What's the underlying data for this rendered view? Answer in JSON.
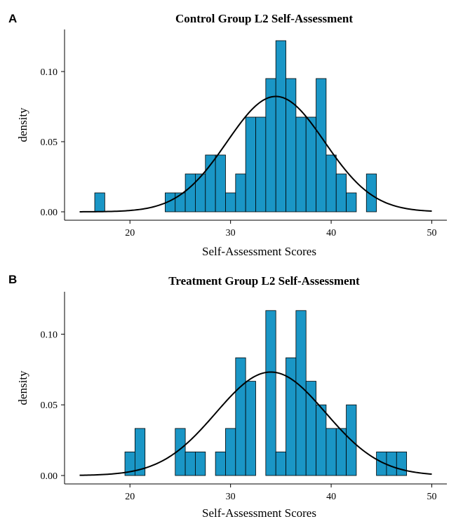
{
  "chart_data": [
    {
      "type": "histogram",
      "panel": "A",
      "title": "Control Group L2 Self-Assessment",
      "xlabel": "Self-Assessment Scores",
      "ylabel": "density",
      "xlim": [
        15,
        50
      ],
      "ylim": [
        0,
        0.13
      ],
      "x_ticks": [
        20,
        30,
        40,
        50
      ],
      "y_ticks": [
        0.0,
        0.05,
        0.1
      ],
      "y_tick_labels": [
        "0.00",
        "0.05",
        "0.10"
      ],
      "bar_color": "#1a96c6",
      "bin_width": 1,
      "bins": [
        {
          "x0": 16.5,
          "x1": 17.5,
          "density": 0.0135
        },
        {
          "x0": 23.5,
          "x1": 24.5,
          "density": 0.0135
        },
        {
          "x0": 24.5,
          "x1": 25.5,
          "density": 0.0135
        },
        {
          "x0": 25.5,
          "x1": 26.5,
          "density": 0.027
        },
        {
          "x0": 26.5,
          "x1": 27.5,
          "density": 0.027
        },
        {
          "x0": 27.5,
          "x1": 28.5,
          "density": 0.0405
        },
        {
          "x0": 28.5,
          "x1": 29.5,
          "density": 0.0405
        },
        {
          "x0": 29.5,
          "x1": 30.5,
          "density": 0.0135
        },
        {
          "x0": 30.5,
          "x1": 31.5,
          "density": 0.027
        },
        {
          "x0": 31.5,
          "x1": 32.5,
          "density": 0.0675
        },
        {
          "x0": 32.5,
          "x1": 33.5,
          "density": 0.0675
        },
        {
          "x0": 33.5,
          "x1": 34.5,
          "density": 0.095
        },
        {
          "x0": 34.5,
          "x1": 35.5,
          "density": 0.122
        },
        {
          "x0": 35.5,
          "x1": 36.5,
          "density": 0.095
        },
        {
          "x0": 36.5,
          "x1": 37.5,
          "density": 0.0675
        },
        {
          "x0": 37.5,
          "x1": 38.5,
          "density": 0.0675
        },
        {
          "x0": 38.5,
          "x1": 39.5,
          "density": 0.095
        },
        {
          "x0": 39.5,
          "x1": 40.5,
          "density": 0.0405
        },
        {
          "x0": 40.5,
          "x1": 41.5,
          "density": 0.027
        },
        {
          "x0": 41.5,
          "x1": 42.5,
          "density": 0.0135
        },
        {
          "x0": 43.5,
          "x1": 44.5,
          "density": 0.027
        }
      ],
      "density_curve": {
        "mean": 34.5,
        "sd": 4.85,
        "x_range": [
          15,
          50
        ]
      }
    },
    {
      "type": "histogram",
      "panel": "B",
      "title": "Treatment Group L2 Self-Assessment",
      "xlabel": "Self-Assessment Scores",
      "ylabel": "density",
      "xlim": [
        15,
        50
      ],
      "ylim": [
        0,
        0.13
      ],
      "x_ticks": [
        20,
        30,
        40,
        50
      ],
      "y_ticks": [
        0.0,
        0.05,
        0.1
      ],
      "y_tick_labels": [
        "0.00",
        "0.05",
        "0.10"
      ],
      "bar_color": "#1a96c6",
      "bin_width": 1,
      "bins": [
        {
          "x0": 19.5,
          "x1": 20.5,
          "density": 0.0167
        },
        {
          "x0": 20.5,
          "x1": 21.5,
          "density": 0.0333
        },
        {
          "x0": 24.5,
          "x1": 25.5,
          "density": 0.0333
        },
        {
          "x0": 25.5,
          "x1": 26.5,
          "density": 0.0167
        },
        {
          "x0": 26.5,
          "x1": 27.5,
          "density": 0.0167
        },
        {
          "x0": 28.5,
          "x1": 29.5,
          "density": 0.0167
        },
        {
          "x0": 29.5,
          "x1": 30.5,
          "density": 0.0333
        },
        {
          "x0": 30.5,
          "x1": 31.5,
          "density": 0.0833
        },
        {
          "x0": 31.5,
          "x1": 32.5,
          "density": 0.0667
        },
        {
          "x0": 33.5,
          "x1": 34.5,
          "density": 0.1167
        },
        {
          "x0": 34.5,
          "x1": 35.5,
          "density": 0.0167
        },
        {
          "x0": 35.5,
          "x1": 36.5,
          "density": 0.0833
        },
        {
          "x0": 36.5,
          "x1": 37.5,
          "density": 0.1167
        },
        {
          "x0": 37.5,
          "x1": 38.5,
          "density": 0.0667
        },
        {
          "x0": 38.5,
          "x1": 39.5,
          "density": 0.05
        },
        {
          "x0": 39.5,
          "x1": 40.5,
          "density": 0.0333
        },
        {
          "x0": 40.5,
          "x1": 41.5,
          "density": 0.0333
        },
        {
          "x0": 41.5,
          "x1": 42.5,
          "density": 0.05
        },
        {
          "x0": 44.5,
          "x1": 45.5,
          "density": 0.0167
        },
        {
          "x0": 45.5,
          "x1": 46.5,
          "density": 0.0167
        },
        {
          "x0": 46.5,
          "x1": 47.5,
          "density": 0.0167
        }
      ],
      "density_curve": {
        "mean": 34.0,
        "sd": 5.45,
        "x_range": [
          15,
          50
        ]
      }
    }
  ]
}
